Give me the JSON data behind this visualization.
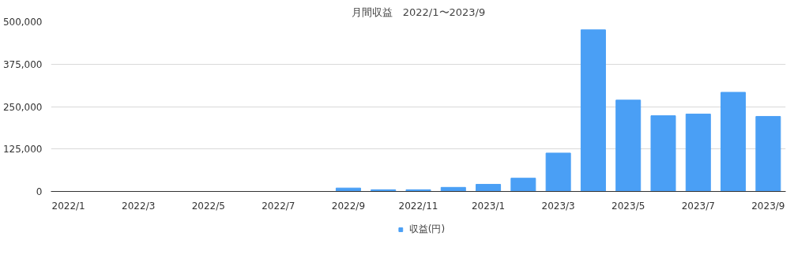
{
  "chart_data": {
    "type": "bar",
    "title": "月間収益　2022/1〜2023/9",
    "categories": [
      "2022/1",
      null,
      "2022/3",
      null,
      "2022/5",
      null,
      "2022/7",
      null,
      "2022/9",
      null,
      "2022/11",
      null,
      "2023/1",
      null,
      "2023/3",
      null,
      "2023/5",
      null,
      "2023/7",
      null,
      "2023/9"
    ],
    "series": [
      {
        "name": "収益(円)",
        "color": "#4a9ff5",
        "values": [
          0,
          0,
          0,
          0,
          0,
          0,
          0,
          0,
          10000,
          5000,
          5000,
          12000,
          21000,
          39000,
          113000,
          476000,
          269000,
          223000,
          228000,
          292000,
          221000
        ]
      }
    ],
    "ylim": [
      0,
      500000
    ],
    "yticks": [
      {
        "value": 0,
        "label": "0"
      },
      {
        "value": 125000,
        "label": "125,000"
      },
      {
        "value": 250000,
        "label": "250,000"
      },
      {
        "value": 375000,
        "label": "375,000"
      },
      {
        "value": 500000,
        "label": "500,000"
      }
    ],
    "grid": "y",
    "legend": "bottom"
  }
}
